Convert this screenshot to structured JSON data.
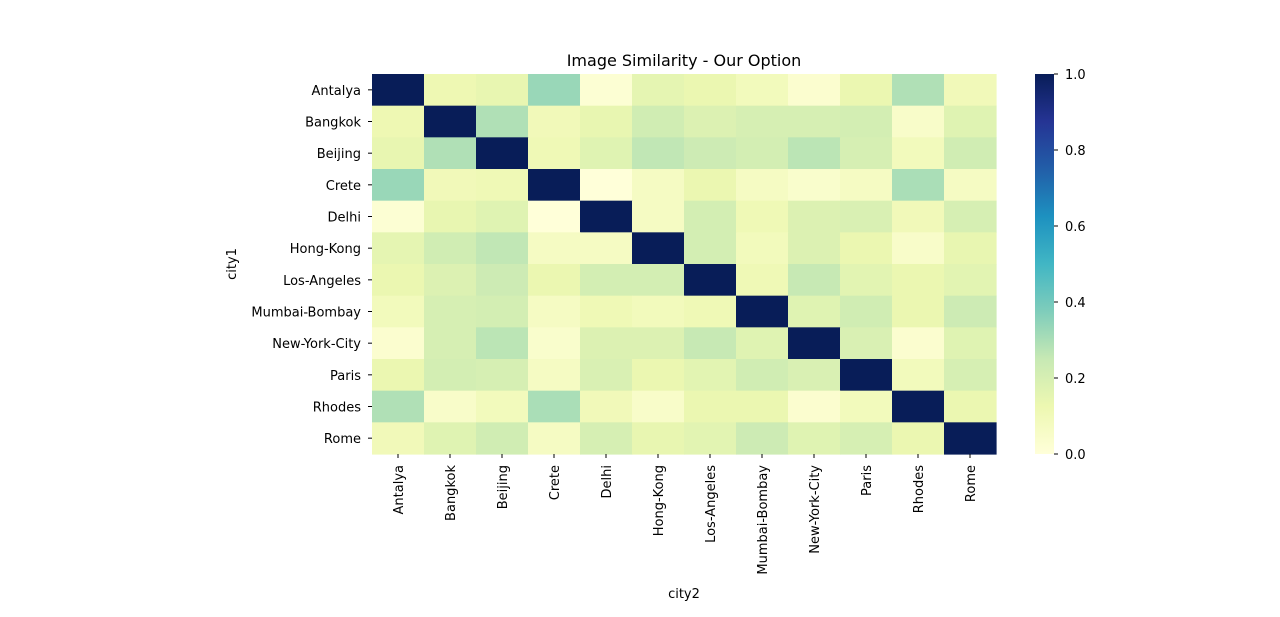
{
  "chart_data": {
    "type": "heatmap",
    "title": "Image Similarity - Our Option",
    "xlabel": "city2",
    "ylabel": "city1",
    "rows": [
      "Antalya",
      "Bangkok",
      "Beijing",
      "Crete",
      "Delhi",
      "Hong-Kong",
      "Los-Angeles",
      "Mumbai-Bombay",
      "New-York-City",
      "Paris",
      "Rhodes",
      "Rome"
    ],
    "cols": [
      "Antalya",
      "Bangkok",
      "Beijing",
      "Crete",
      "Delhi",
      "Hong-Kong",
      "Los-Angeles",
      "Mumbai-Bombay",
      "New-York-City",
      "Paris",
      "Rhodes",
      "Rome"
    ],
    "values": [
      [
        1.0,
        0.12,
        0.14,
        0.33,
        0.02,
        0.15,
        0.13,
        0.09,
        0.03,
        0.13,
        0.29,
        0.1
      ],
      [
        0.12,
        1.0,
        0.29,
        0.1,
        0.14,
        0.22,
        0.18,
        0.2,
        0.2,
        0.21,
        0.05,
        0.17
      ],
      [
        0.14,
        0.29,
        1.0,
        0.11,
        0.17,
        0.26,
        0.23,
        0.21,
        0.27,
        0.2,
        0.09,
        0.22
      ],
      [
        0.33,
        0.1,
        0.11,
        1.0,
        0.0,
        0.07,
        0.13,
        0.07,
        0.04,
        0.07,
        0.3,
        0.07
      ],
      [
        0.02,
        0.14,
        0.17,
        0.0,
        1.0,
        0.07,
        0.21,
        0.11,
        0.18,
        0.19,
        0.1,
        0.2
      ],
      [
        0.15,
        0.22,
        0.26,
        0.07,
        0.07,
        1.0,
        0.21,
        0.09,
        0.18,
        0.13,
        0.05,
        0.14
      ],
      [
        0.13,
        0.18,
        0.23,
        0.13,
        0.21,
        0.21,
        1.0,
        0.11,
        0.25,
        0.16,
        0.13,
        0.16
      ],
      [
        0.09,
        0.2,
        0.21,
        0.07,
        0.11,
        0.09,
        0.11,
        1.0,
        0.17,
        0.22,
        0.13,
        0.23
      ],
      [
        0.03,
        0.2,
        0.27,
        0.04,
        0.18,
        0.18,
        0.25,
        0.17,
        1.0,
        0.19,
        0.03,
        0.17
      ],
      [
        0.13,
        0.21,
        0.2,
        0.07,
        0.19,
        0.13,
        0.16,
        0.22,
        0.19,
        1.0,
        0.09,
        0.2
      ],
      [
        0.29,
        0.05,
        0.09,
        0.3,
        0.1,
        0.05,
        0.13,
        0.13,
        0.03,
        0.09,
        1.0,
        0.13
      ],
      [
        0.1,
        0.17,
        0.22,
        0.07,
        0.2,
        0.14,
        0.16,
        0.23,
        0.17,
        0.2,
        0.13,
        1.0
      ]
    ],
    "colorbar": {
      "min": 0.0,
      "max": 1.0,
      "ticks": [
        0.0,
        0.2,
        0.4,
        0.6,
        0.8,
        1.0
      ],
      "tick_labels": [
        "0.0",
        "0.2",
        "0.4",
        "0.6",
        "0.8",
        "1.0"
      ],
      "colormap": "YlGnBu"
    }
  }
}
